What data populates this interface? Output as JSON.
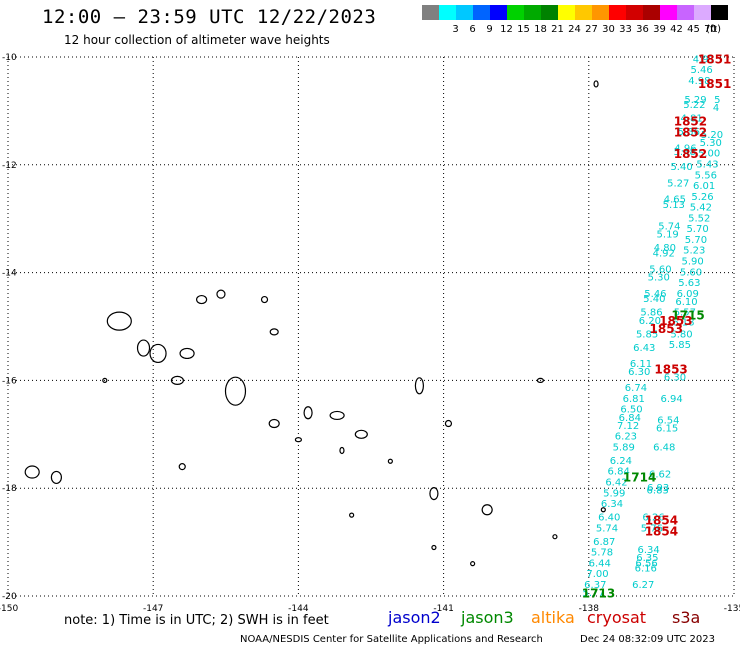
{
  "header": {
    "title": "12:00 – 23:59 UTC 12/22/2023",
    "subtitle": "12 hour collection of altimeter wave heights"
  },
  "legend": {
    "swatches": [
      {
        "label": "",
        "color": "#808080"
      },
      {
        "label": "3",
        "color": "#00ffff"
      },
      {
        "label": "6",
        "color": "#00c8ff"
      },
      {
        "label": "9",
        "color": "#0064ff"
      },
      {
        "label": "12",
        "color": "#0000ff"
      },
      {
        "label": "15",
        "color": "#00d200"
      },
      {
        "label": "18",
        "color": "#00aa00"
      },
      {
        "label": "21",
        "color": "#008200"
      },
      {
        "label": "24",
        "color": "#ffff00"
      },
      {
        "label": "27",
        "color": "#ffc800"
      },
      {
        "label": "30",
        "color": "#ff9600"
      },
      {
        "label": "33",
        "color": "#ff0000"
      },
      {
        "label": "36",
        "color": "#d20000"
      },
      {
        "label": "39",
        "color": "#aa0000"
      },
      {
        "label": "42",
        "color": "#ff00ff"
      },
      {
        "label": "45",
        "color": "#c864ff"
      },
      {
        "label": "70",
        "color": "#dcaaff"
      },
      {
        "label": "",
        "color": "#000000"
      }
    ],
    "unit": "(ft)"
  },
  "map": {
    "lon_ticks": [
      "-150",
      "-147",
      "-144",
      "-141",
      "-138",
      "-135"
    ],
    "lat_ticks": [
      "-10",
      "-12",
      "-14",
      "-16",
      "-18",
      "-20"
    ],
    "lon_range": [
      -150,
      -135
    ],
    "lat_range": [
      -10,
      -20
    ],
    "grid": true,
    "swh_color": "#00cccc",
    "track_a": [
      {
        "lat": -10.1,
        "v": "4.91"
      },
      {
        "lat": -10.3,
        "v": "5.46"
      },
      {
        "lat": -10.5,
        "v": "4.98"
      },
      {
        "lat": -10.85,
        "v": "5.29"
      },
      {
        "lat": -10.95,
        "v": "5.22"
      },
      {
        "lat": -11.2,
        "v": "4.81"
      },
      {
        "lat": -11.45,
        "v": "5.36"
      },
      {
        "lat": -11.75,
        "v": "4.96"
      },
      {
        "lat": -11.82,
        "v": "5.48"
      },
      {
        "lat": -12.1,
        "v": "5.40"
      },
      {
        "lat": -12.4,
        "v": "5.27"
      },
      {
        "lat": -12.7,
        "v": "4.65"
      },
      {
        "lat": -12.8,
        "v": "5.13"
      },
      {
        "lat": -13.2,
        "v": "5.74"
      },
      {
        "lat": -13.35,
        "v": "5.19"
      },
      {
        "lat": -13.6,
        "v": "4.80"
      },
      {
        "lat": -13.7,
        "v": "4.92"
      },
      {
        "lat": -14.0,
        "v": "5.60"
      },
      {
        "lat": -14.15,
        "v": "5.30"
      },
      {
        "lat": -14.45,
        "v": "5.46"
      },
      {
        "lat": -14.55,
        "v": "5.40"
      },
      {
        "lat": -14.8,
        "v": "5.86"
      },
      {
        "lat": -14.95,
        "v": "6.20"
      },
      {
        "lat": -15.2,
        "v": "5.85"
      },
      {
        "lat": -15.45,
        "v": "6.43"
      },
      {
        "lat": -15.75,
        "v": "6.11"
      },
      {
        "lat": -15.9,
        "v": "6.30"
      },
      {
        "lat": -16.2,
        "v": "6.74"
      },
      {
        "lat": -16.4,
        "v": "6.81"
      },
      {
        "lat": -16.6,
        "v": "6.50"
      },
      {
        "lat": -16.75,
        "v": "6.84"
      },
      {
        "lat": -16.9,
        "v": "7.12"
      },
      {
        "lat": -17.1,
        "v": "6.23"
      },
      {
        "lat": -17.3,
        "v": "5.89"
      },
      {
        "lat": -17.55,
        "v": "6.24"
      },
      {
        "lat": -17.75,
        "v": "6.84"
      },
      {
        "lat": -17.95,
        "v": "6.42"
      },
      {
        "lat": -18.15,
        "v": "5.99"
      },
      {
        "lat": -18.35,
        "v": "6.34"
      },
      {
        "lat": -18.6,
        "v": "6.40"
      },
      {
        "lat": -18.8,
        "v": "5.74"
      },
      {
        "lat": -19.05,
        "v": "6.87"
      },
      {
        "lat": -19.25,
        "v": "5.78"
      },
      {
        "lat": -19.45,
        "v": "6.44"
      },
      {
        "lat": -19.65,
        "v": "7.00"
      },
      {
        "lat": -19.85,
        "v": "6.37"
      },
      {
        "lat": -20.0,
        "v": "5.77"
      }
    ],
    "track_b": [
      {
        "lat": -10.85,
        "v": "5"
      },
      {
        "lat": -11.0,
        "v": "4"
      },
      {
        "lat": -11.5,
        "v": "5.20"
      },
      {
        "lat": -11.65,
        "v": "5.30"
      },
      {
        "lat": -11.85,
        "v": "5.00"
      },
      {
        "lat": -12.05,
        "v": "5.43"
      },
      {
        "lat": -12.25,
        "v": "5.56"
      },
      {
        "lat": -12.45,
        "v": "6.01"
      },
      {
        "lat": -12.65,
        "v": "5.26"
      },
      {
        "lat": -12.85,
        "v": "5.42"
      },
      {
        "lat": -13.05,
        "v": "5.52"
      },
      {
        "lat": -13.25,
        "v": "5.70"
      },
      {
        "lat": -13.45,
        "v": "5.70"
      },
      {
        "lat": -13.65,
        "v": "5.23"
      },
      {
        "lat": -13.85,
        "v": "5.90"
      },
      {
        "lat": -14.05,
        "v": "5.60"
      },
      {
        "lat": -14.25,
        "v": "5.63"
      },
      {
        "lat": -14.45,
        "v": "6.09"
      },
      {
        "lat": -14.6,
        "v": "6.10"
      },
      {
        "lat": -14.8,
        "v": "5.57"
      },
      {
        "lat": -14.98,
        "v": "6.18"
      },
      {
        "lat": -15.2,
        "v": "5.80"
      },
      {
        "lat": -15.4,
        "v": "5.85"
      },
      {
        "lat": -16.0,
        "v": "6.30"
      },
      {
        "lat": -16.4,
        "v": "6.94"
      },
      {
        "lat": -16.8,
        "v": "6.54"
      },
      {
        "lat": -16.95,
        "v": "6.15"
      },
      {
        "lat": -17.3,
        "v": "6.48"
      },
      {
        "lat": -17.8,
        "v": "6.62"
      },
      {
        "lat": -18.05,
        "v": "6.93"
      },
      {
        "lat": -18.1,
        "v": "6.83"
      },
      {
        "lat": -18.6,
        "v": "6.26"
      },
      {
        "lat": -18.8,
        "v": "5.76"
      },
      {
        "lat": -19.2,
        "v": "6.34"
      },
      {
        "lat": -19.35,
        "v": "6.35"
      },
      {
        "lat": -19.45,
        "v": "6.56"
      },
      {
        "lat": -19.55,
        "v": "6.16"
      },
      {
        "lat": -19.85,
        "v": "6.27"
      }
    ],
    "time_labels": [
      {
        "text": "1851",
        "color": "#cc0000",
        "lat": -10.05,
        "lon": -135.4
      },
      {
        "text": "1851",
        "color": "#cc0000",
        "lat": -10.5,
        "lon": -135.4
      },
      {
        "text": "1852",
        "color": "#cc0000",
        "lat": -11.2,
        "lon": -135.9
      },
      {
        "text": "1852",
        "color": "#cc0000",
        "lat": -11.4,
        "lon": -135.9
      },
      {
        "text": "1852",
        "color": "#cc0000",
        "lat": -11.8,
        "lon": -135.9
      },
      {
        "text": "1715",
        "color": "#008800",
        "lat": -14.8,
        "lon": -135.95
      },
      {
        "text": "1853",
        "color": "#cc0000",
        "lat": -14.9,
        "lon": -136.2
      },
      {
        "text": "1853",
        "color": "#cc0000",
        "lat": -15.05,
        "lon": -136.4
      },
      {
        "text": "1853",
        "color": "#cc0000",
        "lat": -15.8,
        "lon": -136.3
      },
      {
        "text": "1714",
        "color": "#008800",
        "lat": -17.8,
        "lon": -136.95
      },
      {
        "text": "1854",
        "color": "#cc0000",
        "lat": -18.6,
        "lon": -136.5
      },
      {
        "text": "1854",
        "color": "#cc0000",
        "lat": -18.8,
        "lon": -136.5
      },
      {
        "text": "1713",
        "color": "#008800",
        "lat": -19.95,
        "lon": -137.8
      }
    ]
  },
  "footer": {
    "note": "note:  1) Time is in UTC;  2) SWH is in feet",
    "satellites": [
      {
        "name": "jason2",
        "color": "#0000cc"
      },
      {
        "name": "jason3",
        "color": "#008800"
      },
      {
        "name": "altika",
        "color": "#ff8800"
      },
      {
        "name": "cryosat",
        "color": "#cc0000"
      },
      {
        "name": "s3a",
        "color": "#880000"
      }
    ],
    "credit": "NOAA/NESDIS Center for Satellite Applications and Research",
    "timestamp": "Dec 24 08:32:09 UTC 2023"
  }
}
